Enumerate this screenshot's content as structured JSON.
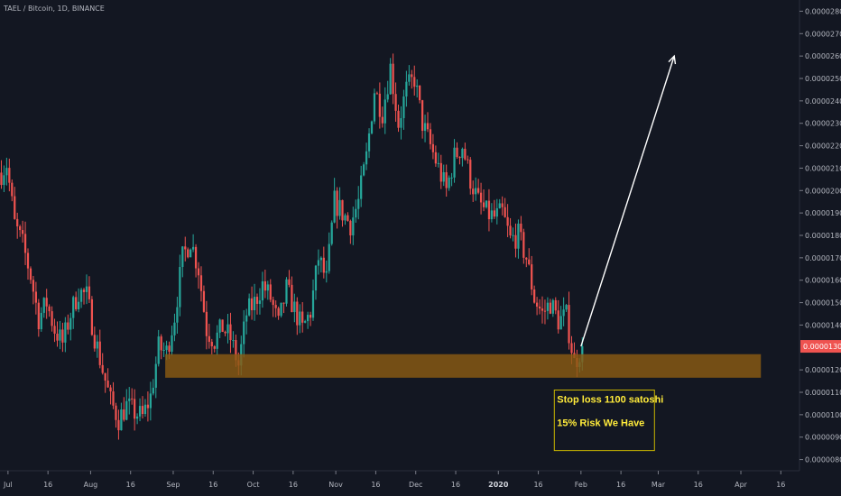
{
  "header": {
    "symbol": "TAEL / Bitcoin, 1D, BINANCE"
  },
  "colors": {
    "background": "#131722",
    "up": "#26a69a",
    "down": "#ef5350",
    "zone": "#8a5a12",
    "note_border": "#c8b400",
    "note_text": "#ffeb3b",
    "price_tag": "#ef5350",
    "arrow": "#ffffff"
  },
  "chart_data": {
    "type": "candlestick",
    "ylim": [
      7.5e-06,
      2.85e-05
    ],
    "y_ticks": [
      "0.00000800",
      "0.00000900",
      "0.00001000",
      "0.00001100",
      "0.00001200",
      "0.00001400",
      "0.00001500",
      "0.00001600",
      "0.00001700",
      "0.00001800",
      "0.00001900",
      "0.00002000",
      "0.00002100",
      "0.00002200",
      "0.00002300",
      "0.00002400",
      "0.00002500",
      "0.00002600",
      "0.00002700",
      "0.00002800"
    ],
    "x_ticks": [
      {
        "label": "Jul",
        "date": "2019-07-01",
        "bold": false
      },
      {
        "label": "16",
        "date": "2019-07-16",
        "bold": false
      },
      {
        "label": "Aug",
        "date": "2019-08-01",
        "bold": false
      },
      {
        "label": "16",
        "date": "2019-08-16",
        "bold": false
      },
      {
        "label": "Sep",
        "date": "2019-09-01",
        "bold": false
      },
      {
        "label": "16",
        "date": "2019-09-16",
        "bold": false
      },
      {
        "label": "Oct",
        "date": "2019-10-01",
        "bold": false
      },
      {
        "label": "16",
        "date": "2019-10-16",
        "bold": false
      },
      {
        "label": "Nov",
        "date": "2019-11-01",
        "bold": false
      },
      {
        "label": "16",
        "date": "2019-11-16",
        "bold": false
      },
      {
        "label": "Dec",
        "date": "2019-12-01",
        "bold": false
      },
      {
        "label": "16",
        "date": "2019-12-16",
        "bold": false
      },
      {
        "label": "2020",
        "date": "2020-01-01",
        "bold": true
      },
      {
        "label": "16",
        "date": "2020-01-16",
        "bold": false
      },
      {
        "label": "Feb",
        "date": "2020-02-01",
        "bold": false
      },
      {
        "label": "16",
        "date": "2020-02-16",
        "bold": false
      },
      {
        "label": "Mar",
        "date": "2020-03-01",
        "bold": false
      },
      {
        "label": "16",
        "date": "2020-03-16",
        "bold": false
      },
      {
        "label": "Apr",
        "date": "2020-04-01",
        "bold": false
      },
      {
        "label": "16",
        "date": "2020-04-16",
        "bold": false
      }
    ],
    "x_range": [
      "2019-06-28",
      "2020-04-23"
    ],
    "last_price": {
      "label": "0.00001305",
      "value": 1.305e-05
    },
    "zone": {
      "from": "2019-08-29",
      "to": "2020-04-18",
      "low": 1.165e-05,
      "high": 1.27e-05
    },
    "arrow": {
      "from": {
        "date": "2020-02-01",
        "value": 1.305e-05
      },
      "to": {
        "date": "2020-03-07",
        "value": 2.6e-05
      }
    },
    "annotation": {
      "lines": [
        "Stop loss 1100 satoshi",
        "15% Risk We Have"
      ],
      "date": "2020-01-22",
      "top": 1.11e-05,
      "bottom": 8.4e-06
    },
    "closes": [
      {
        "date": "2019-06-28",
        "close": 2.08e-05
      },
      {
        "date": "2019-06-30",
        "close": 2.12e-05
      },
      {
        "date": "2019-07-03",
        "close": 1.85e-05
      },
      {
        "date": "2019-07-06",
        "close": 1.76e-05
      },
      {
        "date": "2019-07-09",
        "close": 1.62e-05
      },
      {
        "date": "2019-07-12",
        "close": 1.43e-05
      },
      {
        "date": "2019-07-15",
        "close": 1.5e-05
      },
      {
        "date": "2019-07-18",
        "close": 1.38e-05
      },
      {
        "date": "2019-07-21",
        "close": 1.32e-05
      },
      {
        "date": "2019-07-24",
        "close": 1.45e-05
      },
      {
        "date": "2019-07-27",
        "close": 1.55e-05
      },
      {
        "date": "2019-07-30",
        "close": 1.53e-05
      },
      {
        "date": "2019-08-02",
        "close": 1.35e-05
      },
      {
        "date": "2019-08-05",
        "close": 1.2e-05
      },
      {
        "date": "2019-08-08",
        "close": 1.06e-05
      },
      {
        "date": "2019-08-11",
        "close": 9.8e-06
      },
      {
        "date": "2019-08-14",
        "close": 1.04e-05
      },
      {
        "date": "2019-08-17",
        "close": 1.01e-05
      },
      {
        "date": "2019-08-20",
        "close": 9.9e-06
      },
      {
        "date": "2019-08-23",
        "close": 1.08e-05
      },
      {
        "date": "2019-08-26",
        "close": 1.3e-05
      },
      {
        "date": "2019-08-29",
        "close": 1.28e-05
      },
      {
        "date": "2019-09-01",
        "close": 1.44e-05
      },
      {
        "date": "2019-09-04",
        "close": 1.7e-05
      },
      {
        "date": "2019-09-07",
        "close": 1.78e-05
      },
      {
        "date": "2019-09-10",
        "close": 1.65e-05
      },
      {
        "date": "2019-09-13",
        "close": 1.38e-05
      },
      {
        "date": "2019-09-16",
        "close": 1.33e-05
      },
      {
        "date": "2019-09-19",
        "close": 1.39e-05
      },
      {
        "date": "2019-09-22",
        "close": 1.34e-05
      },
      {
        "date": "2019-09-25",
        "close": 1.22e-05
      },
      {
        "date": "2019-09-28",
        "close": 1.45e-05
      },
      {
        "date": "2019-10-01",
        "close": 1.5e-05
      },
      {
        "date": "2019-10-04",
        "close": 1.58e-05
      },
      {
        "date": "2019-10-07",
        "close": 1.52e-05
      },
      {
        "date": "2019-10-10",
        "close": 1.4e-05
      },
      {
        "date": "2019-10-13",
        "close": 1.56e-05
      },
      {
        "date": "2019-10-16",
        "close": 1.47e-05
      },
      {
        "date": "2019-10-19",
        "close": 1.38e-05
      },
      {
        "date": "2019-10-22",
        "close": 1.46e-05
      },
      {
        "date": "2019-10-25",
        "close": 1.7e-05
      },
      {
        "date": "2019-10-28",
        "close": 1.6e-05
      },
      {
        "date": "2019-10-31",
        "close": 1.95e-05
      },
      {
        "date": "2019-11-03",
        "close": 1.9e-05
      },
      {
        "date": "2019-11-06",
        "close": 1.85e-05
      },
      {
        "date": "2019-11-09",
        "close": 1.95e-05
      },
      {
        "date": "2019-11-12",
        "close": 2.15e-05
      },
      {
        "date": "2019-11-15",
        "close": 2.45e-05
      },
      {
        "date": "2019-11-18",
        "close": 2.35e-05
      },
      {
        "date": "2019-11-21",
        "close": 2.55e-05
      },
      {
        "date": "2019-11-24",
        "close": 2.3e-05
      },
      {
        "date": "2019-11-27",
        "close": 2.45e-05
      },
      {
        "date": "2019-11-30",
        "close": 2.5e-05
      },
      {
        "date": "2019-12-03",
        "close": 2.3e-05
      },
      {
        "date": "2019-12-06",
        "close": 2.2e-05
      },
      {
        "date": "2019-12-09",
        "close": 2.1e-05
      },
      {
        "date": "2019-12-12",
        "close": 2e-05
      },
      {
        "date": "2019-12-15",
        "close": 2.15e-05
      },
      {
        "date": "2019-12-18",
        "close": 2.2e-05
      },
      {
        "date": "2019-12-21",
        "close": 2.05e-05
      },
      {
        "date": "2019-12-24",
        "close": 1.95e-05
      },
      {
        "date": "2019-12-27",
        "close": 1.9e-05
      },
      {
        "date": "2019-12-30",
        "close": 1.88e-05
      },
      {
        "date": "2020-01-02",
        "close": 1.9e-05
      },
      {
        "date": "2020-01-05",
        "close": 1.78e-05
      },
      {
        "date": "2020-01-08",
        "close": 1.8e-05
      },
      {
        "date": "2020-01-11",
        "close": 1.7e-05
      },
      {
        "date": "2020-01-14",
        "close": 1.52e-05
      },
      {
        "date": "2020-01-17",
        "close": 1.45e-05
      },
      {
        "date": "2020-01-20",
        "close": 1.5e-05
      },
      {
        "date": "2020-01-23",
        "close": 1.42e-05
      },
      {
        "date": "2020-01-26",
        "close": 1.44e-05
      },
      {
        "date": "2020-01-29",
        "close": 1.23e-05
      },
      {
        "date": "2020-02-01",
        "close": 1.305e-05
      }
    ]
  }
}
